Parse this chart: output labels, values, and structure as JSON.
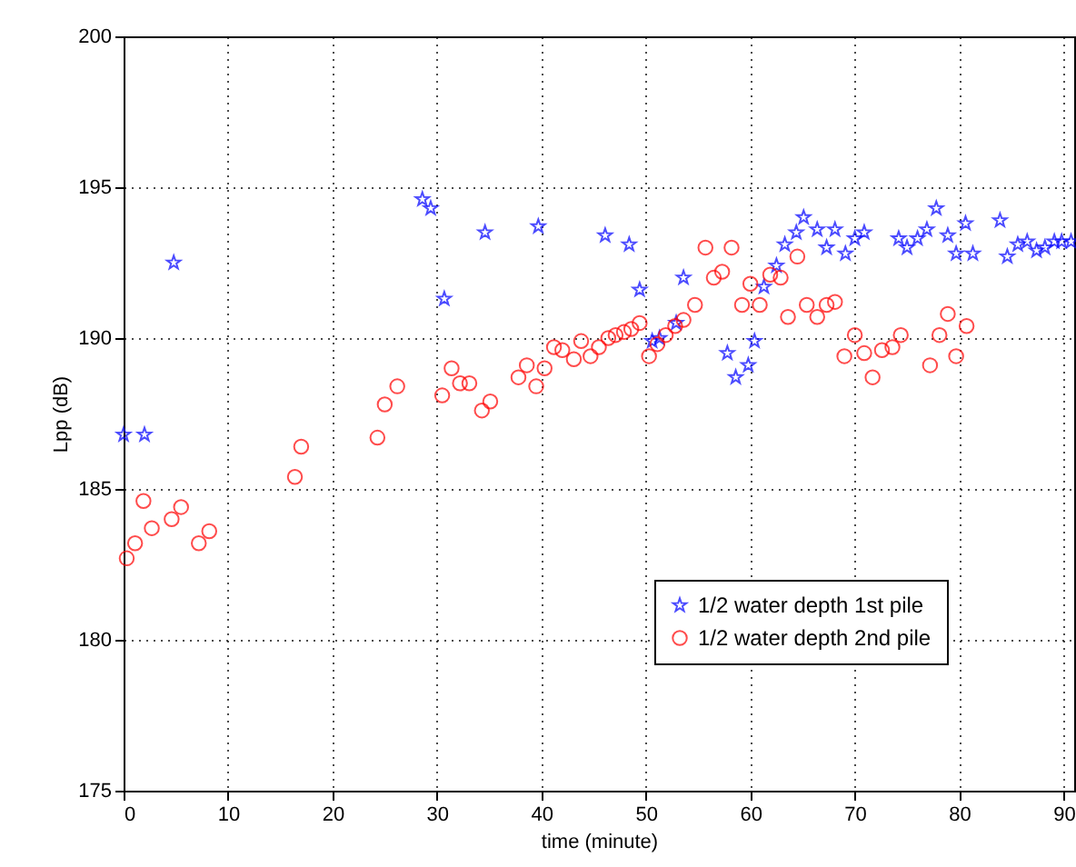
{
  "chart_data": {
    "type": "scatter",
    "xlabel": "time (minute)",
    "ylabel": "Lpp (dB)",
    "xlim": [
      0,
      91
    ],
    "xticks": [
      0,
      10,
      20,
      30,
      40,
      50,
      60,
      70,
      80,
      90
    ],
    "ylim": [
      175,
      200
    ],
    "yticks": [
      175,
      180,
      185,
      190,
      195,
      200
    ],
    "grid": true,
    "legend": "bottom right",
    "series": [
      {
        "name": "1/2 water depth 1st pile",
        "color": "#0000ff",
        "marker": "star",
        "x": [
          0,
          2,
          4.8,
          28.6,
          29.4,
          30.7,
          34.6,
          39.7,
          46.1,
          48.4,
          49.4,
          50.6,
          51.3,
          52.9,
          53.6,
          57.8,
          58.6,
          59.8,
          60.4,
          61.3,
          62.5,
          63.3,
          64.4,
          65.1,
          66.4,
          67.3,
          68.1,
          69.1,
          70.0,
          70.9,
          74.2,
          75.0,
          76.0,
          76.9,
          77.8,
          78.9,
          79.7,
          80.6,
          81.3,
          83.9,
          84.6,
          85.6,
          86.5,
          87.4,
          88.2,
          89.1,
          89.8,
          90.7
        ],
        "values": [
          186.8,
          186.8,
          192.5,
          194.6,
          194.3,
          191.3,
          193.5,
          193.7,
          193.4,
          193.1,
          191.6,
          189.9,
          190.0,
          190.5,
          192.0,
          189.5,
          188.7,
          189.1,
          189.9,
          191.7,
          192.4,
          193.1,
          193.5,
          194.0,
          193.6,
          193.0,
          193.6,
          192.8,
          193.3,
          193.5,
          193.3,
          193.0,
          193.3,
          193.6,
          194.3,
          193.4,
          192.8,
          193.8,
          192.8,
          193.9,
          192.7,
          193.1,
          193.2,
          192.9,
          193.0,
          193.2,
          193.2,
          193.2
        ]
      },
      {
        "name": "1/2 water depth 2nd pile",
        "color": "#ff0000",
        "marker": "circle",
        "x": [
          0.3,
          1.1,
          1.9,
          2.7,
          4.6,
          5.5,
          7.2,
          8.2,
          16.4,
          17.0,
          24.3,
          25.0,
          26.2,
          30.5,
          31.4,
          32.2,
          33.1,
          34.3,
          35.1,
          37.8,
          38.6,
          39.5,
          40.3,
          41.2,
          42.0,
          43.1,
          43.8,
          44.7,
          45.5,
          46.4,
          47.1,
          47.9,
          48.6,
          49.4,
          50.3,
          51.1,
          51.9,
          52.8,
          53.6,
          54.7,
          55.7,
          56.5,
          57.3,
          58.2,
          59.2,
          60.0,
          60.9,
          61.9,
          62.9,
          63.6,
          64.5,
          65.4,
          66.4,
          67.3,
          68.1,
          69.0,
          70.0,
          70.9,
          71.7,
          72.6,
          73.6,
          74.4,
          77.2,
          78.1,
          78.9,
          79.7,
          80.7
        ],
        "values": [
          182.7,
          183.2,
          184.6,
          183.7,
          184.0,
          184.4,
          183.2,
          183.6,
          185.4,
          186.4,
          186.7,
          187.8,
          188.4,
          188.1,
          189.0,
          188.5,
          188.5,
          187.6,
          187.9,
          188.7,
          189.1,
          188.4,
          189.0,
          189.7,
          189.6,
          189.3,
          189.9,
          189.4,
          189.7,
          190.0,
          190.1,
          190.2,
          190.3,
          190.5,
          189.4,
          189.8,
          190.1,
          190.4,
          190.6,
          191.1,
          193.0,
          192.0,
          192.2,
          193.0,
          191.1,
          191.8,
          191.1,
          192.1,
          192.0,
          190.7,
          192.7,
          191.1,
          190.7,
          191.1,
          191.2,
          189.4,
          190.1,
          189.5,
          188.7,
          189.6,
          189.7,
          190.1,
          189.1,
          190.1,
          190.8,
          189.4,
          190.4
        ]
      }
    ]
  }
}
